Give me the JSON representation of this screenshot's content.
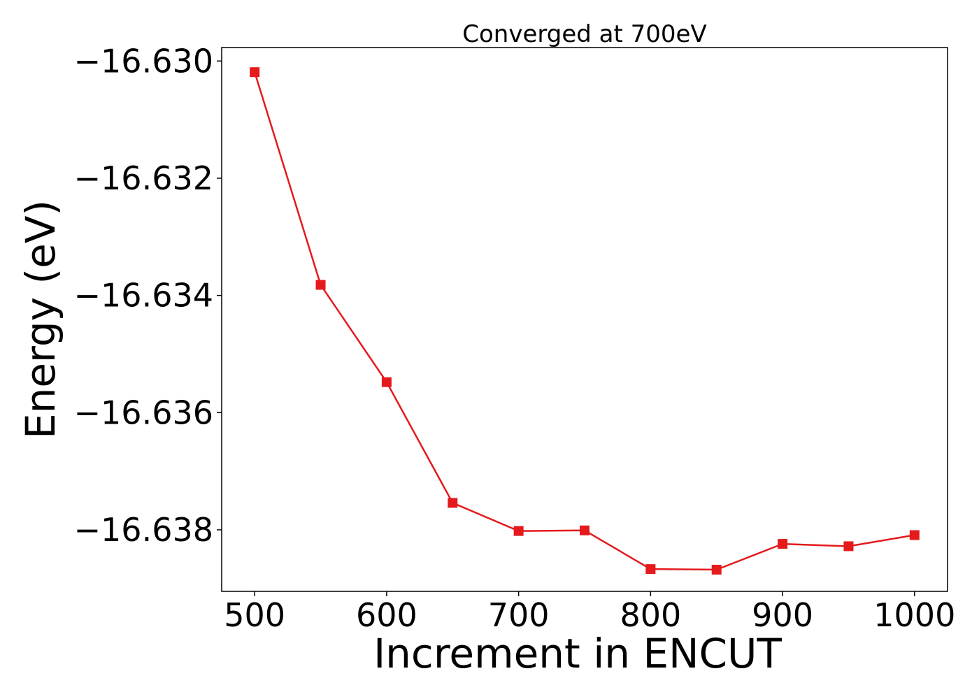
{
  "chart_data": {
    "type": "line",
    "title": "Converged at 700eV",
    "xlabel": "Increment in ENCUT",
    "ylabel": "Energy (eV)",
    "xlim": [
      475,
      1025
    ],
    "ylim": [
      -16.63905,
      -16.62977
    ],
    "xticks": [
      500,
      600,
      700,
      800,
      900,
      1000
    ],
    "xtick_labels": [
      "500",
      "600",
      "700",
      "800",
      "900",
      "1000"
    ],
    "yticks": [
      -16.63,
      -16.632,
      -16.634,
      -16.636,
      -16.638
    ],
    "ytick_labels": [
      "−16.630",
      "−16.632",
      "−16.634",
      "−16.636",
      "−16.638"
    ],
    "grid": false,
    "series": [
      {
        "color": "#e41a1c",
        "marker": "square",
        "x": [
          500,
          550,
          600,
          650,
          700,
          750,
          800,
          850,
          900,
          950,
          1000
        ],
        "y": [
          -16.63019,
          -16.63382,
          -16.63548,
          -16.63754,
          -16.63802,
          -16.63801,
          -16.63867,
          -16.63868,
          -16.63824,
          -16.63828,
          -16.63809
        ]
      }
    ]
  }
}
